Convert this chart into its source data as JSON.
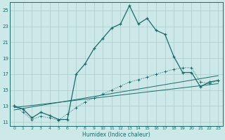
{
  "xlabel": "Humidex (Indice chaleur)",
  "xlim": [
    -0.5,
    23.5
  ],
  "ylim": [
    10.5,
    26.0
  ],
  "yticks": [
    11,
    13,
    15,
    17,
    19,
    21,
    23,
    25
  ],
  "xticks": [
    0,
    1,
    2,
    3,
    4,
    5,
    6,
    7,
    8,
    9,
    10,
    11,
    12,
    13,
    14,
    15,
    16,
    17,
    18,
    19,
    20,
    21,
    22,
    23
  ],
  "bg_color": "#cce8e8",
  "line_color": "#1a6b6b",
  "grid_color": "#aacccc",
  "line1_x": [
    0,
    1,
    2,
    3,
    4,
    5,
    6,
    7,
    8,
    9,
    10,
    11,
    12,
    13,
    14,
    15,
    16,
    17,
    18,
    19,
    20,
    21,
    22,
    23
  ],
  "line1_y": [
    13.0,
    12.6,
    11.5,
    12.2,
    11.8,
    11.3,
    11.3,
    17.0,
    18.3,
    20.2,
    21.5,
    22.8,
    23.3,
    25.6,
    23.3,
    24.0,
    22.5,
    22.0,
    19.2,
    17.2,
    17.2,
    15.4,
    16.0,
    16.2
  ],
  "line2_x": [
    0,
    1,
    2,
    3,
    4,
    5,
    6,
    7,
    8,
    9,
    10,
    11,
    12,
    13,
    14,
    15,
    16,
    17,
    18,
    19,
    20,
    21,
    22,
    23
  ],
  "line2_y": [
    13.0,
    12.2,
    11.3,
    11.7,
    11.5,
    11.2,
    12.0,
    12.8,
    13.5,
    14.0,
    14.5,
    15.0,
    15.5,
    16.0,
    16.3,
    16.6,
    17.0,
    17.3,
    17.6,
    17.8,
    17.8,
    16.0,
    15.8,
    16.2
  ],
  "line3_x": [
    0,
    23
  ],
  "line3_y": [
    12.5,
    16.8
  ],
  "line4_x": [
    0,
    23
  ],
  "line4_y": [
    12.8,
    15.8
  ]
}
